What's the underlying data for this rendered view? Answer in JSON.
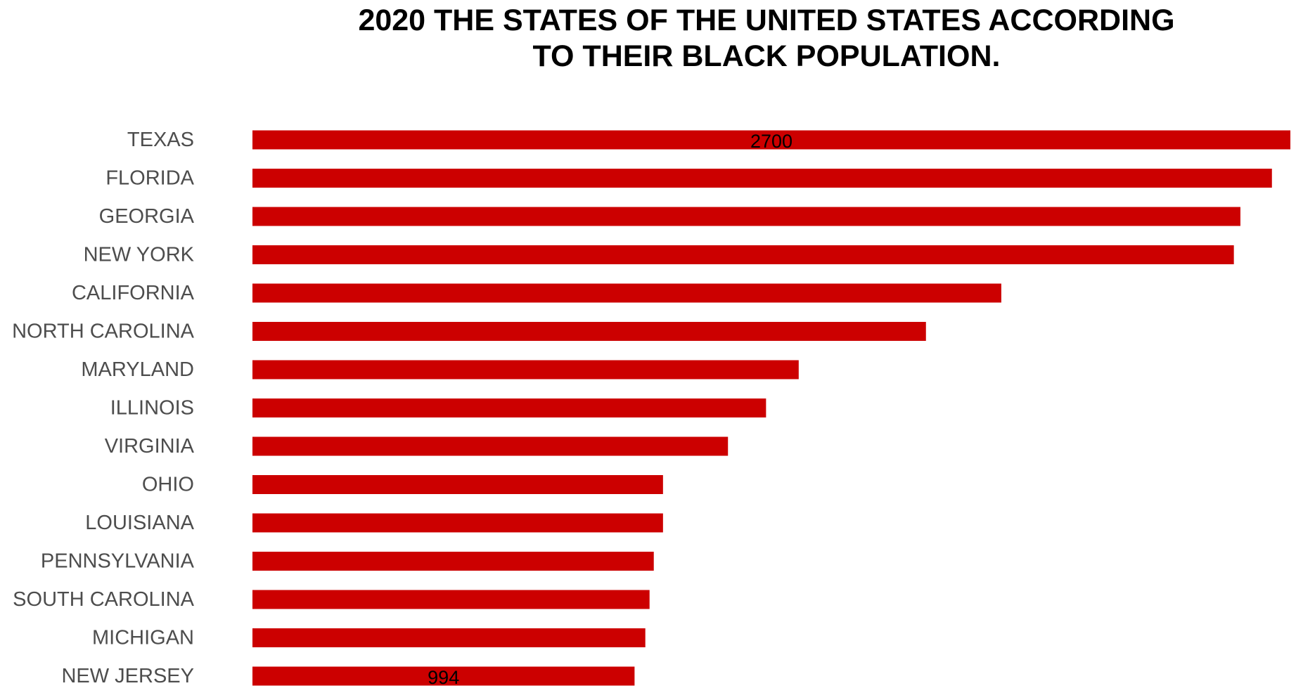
{
  "chart_data": {
    "type": "bar",
    "orientation": "horizontal",
    "title_lines": [
      "2020 THE STATES OF THE UNITED STATES ACCORDING",
      "TO THEIR BLACK POPULATION."
    ],
    "categories": [
      "TEXAS",
      "FLORIDA",
      "GEORGIA",
      "NEW YORK",
      "CALIFORNIA",
      "NORTH CAROLINA",
      "MARYLAND",
      "ILLINOIS",
      "VIRGINIA",
      "OHIO",
      "LOUISIANA",
      "PENNSYLVANIA",
      "SOUTH CAROLINA",
      "MICHIGAN",
      "NEW JERSEY"
    ],
    "values": [
      2700,
      2652,
      2570,
      2553,
      1948,
      1752,
      1421,
      1336,
      1237,
      1068,
      1068,
      1044,
      1033,
      1022,
      994
    ],
    "data_labels": [
      {
        "index": 0,
        "text": "2700"
      },
      {
        "index": 14,
        "text": "994"
      }
    ],
    "xlim": [
      0,
      2700
    ],
    "grid": false,
    "bar_color": "#cc0000"
  }
}
